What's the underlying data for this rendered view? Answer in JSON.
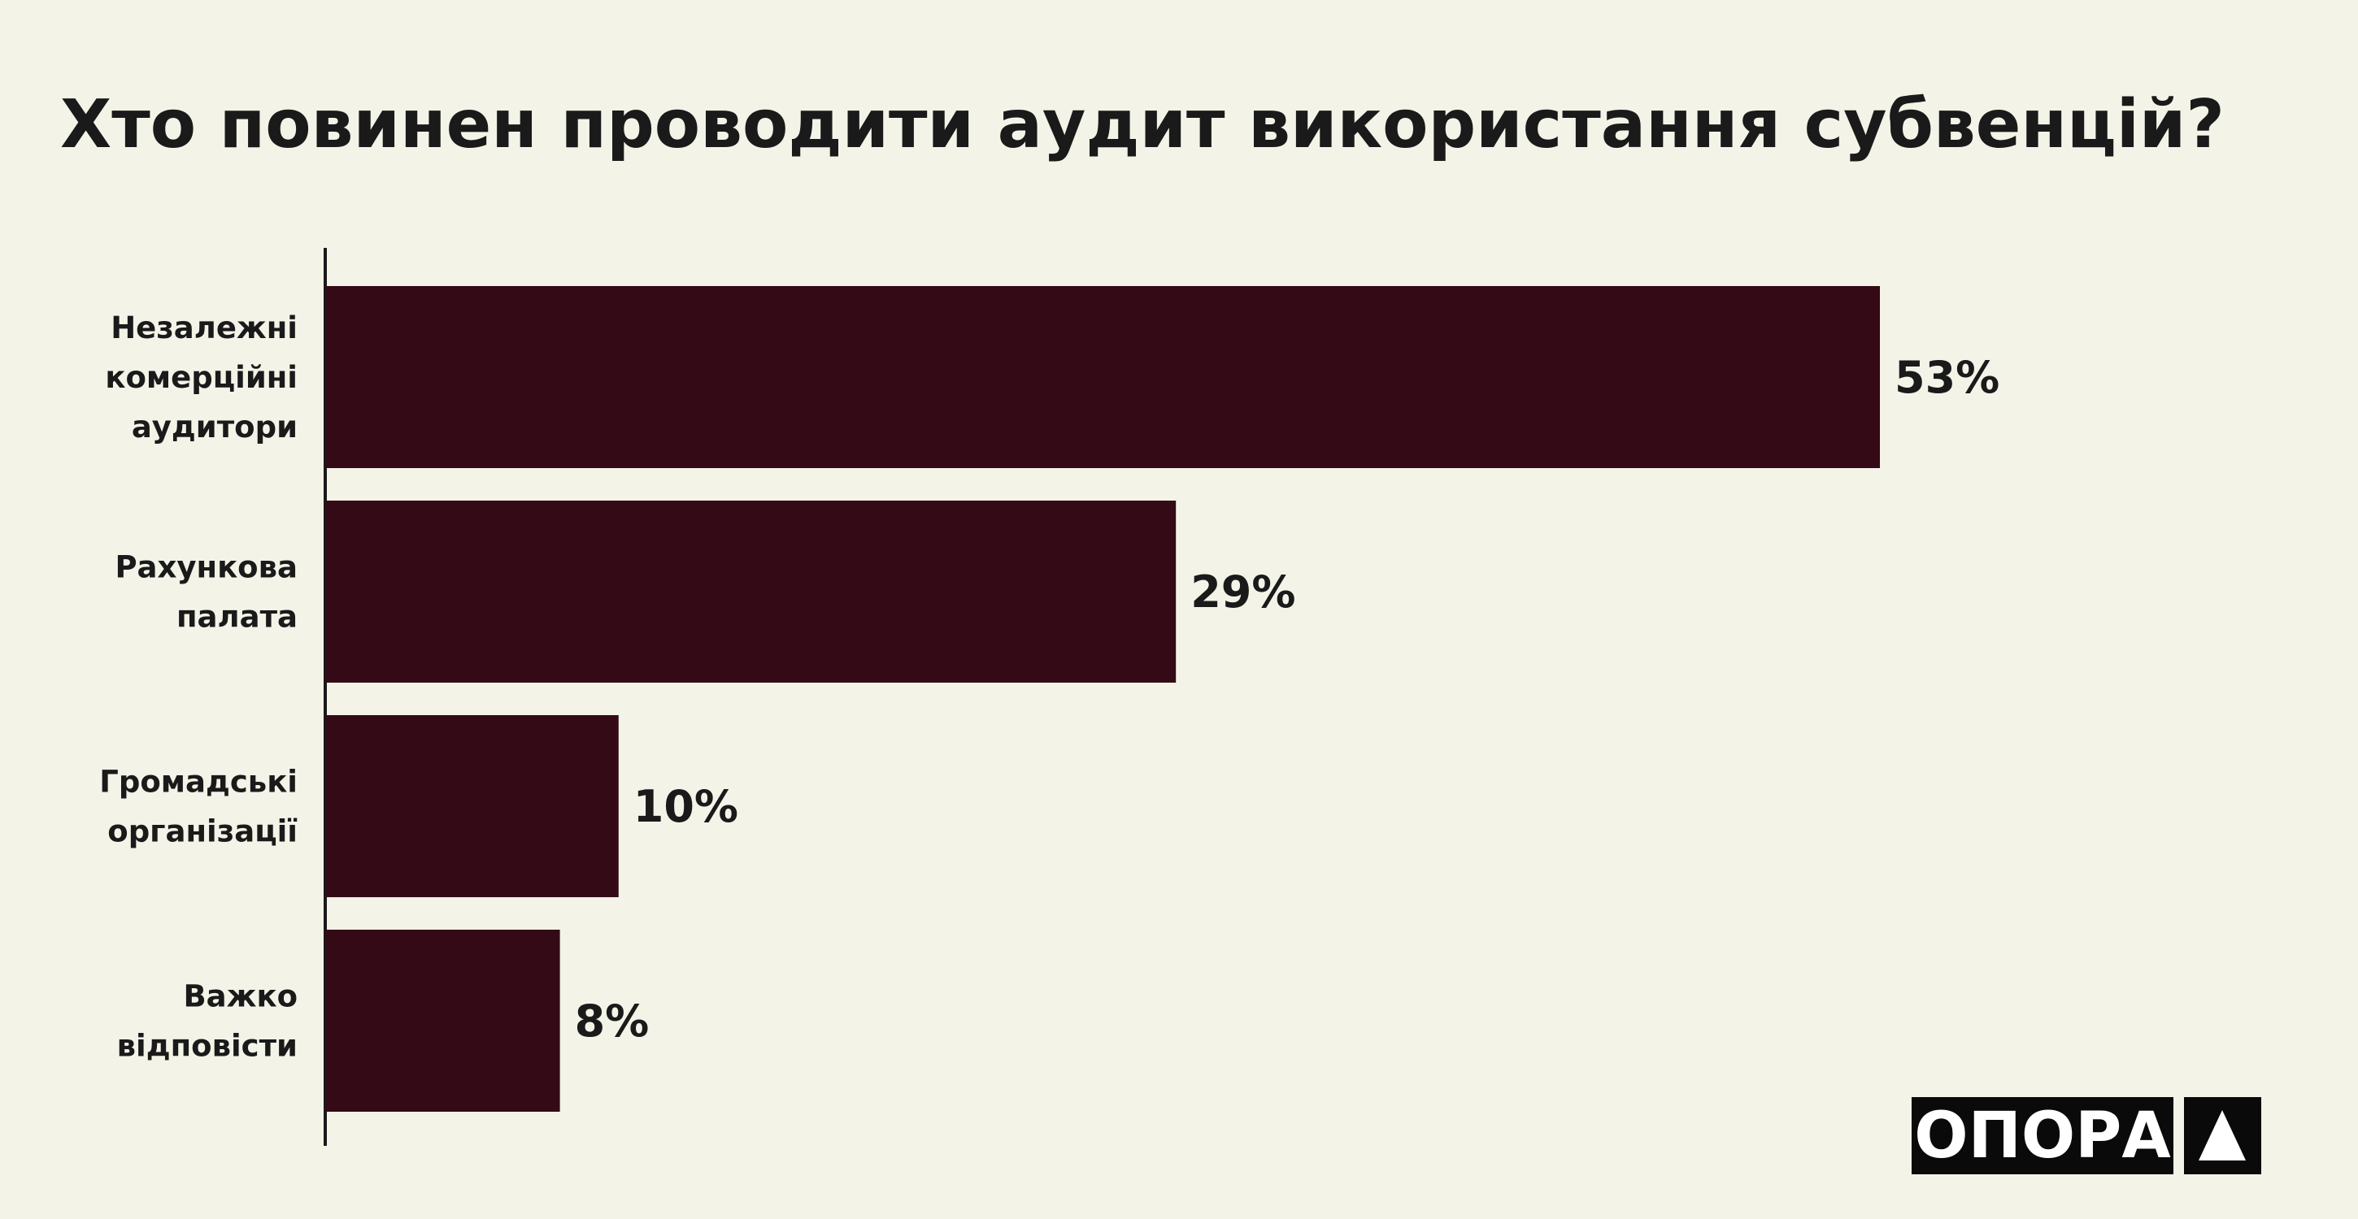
{
  "chart_data": {
    "type": "barh",
    "title": "Хто повинен проводити аудит використання субвенцій?",
    "categories": [
      "Незалежні комерційні аудитори",
      "Рахункова палата",
      "Громадські організації",
      "Важко відповісти"
    ],
    "values": [
      53,
      29,
      10,
      8
    ],
    "value_labels": [
      "53%",
      "29%",
      "10%",
      "8%"
    ],
    "color": "#330a15",
    "logo": "ОПОРА"
  }
}
